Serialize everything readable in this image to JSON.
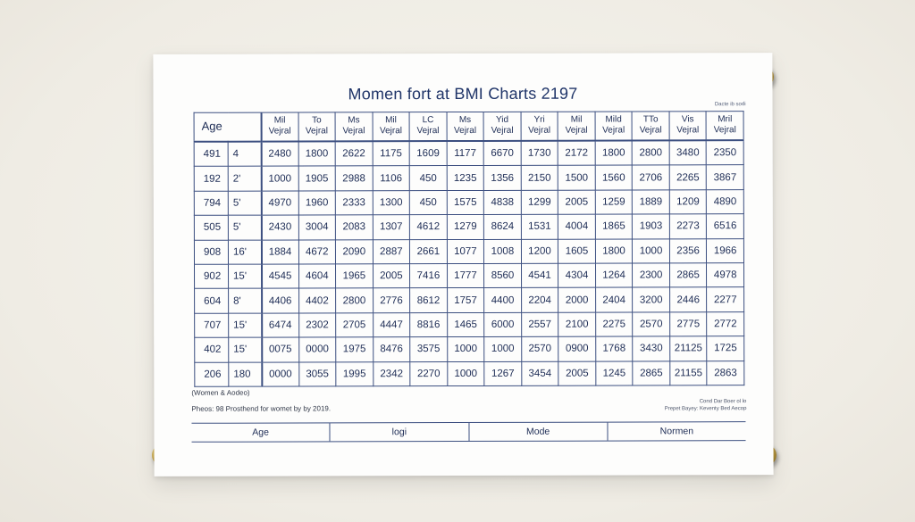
{
  "poster": {
    "title": "Momen fort at BMI Charts 2197",
    "corner_note": "Dacte ib sodi",
    "caption": "(Women & Aodeo)",
    "source": "Pheos: 98 Prosthend for womet by by 2019.",
    "credit_line1": "Cond Dar Boer ol lo",
    "credit_line2": "Prepet Bayey: Keventy Bed Aecop"
  },
  "table": {
    "age_header": "Age",
    "columns": [
      [
        "Mil",
        "Vejral"
      ],
      [
        "To",
        "Vejral"
      ],
      [
        "Ms",
        "Vejral"
      ],
      [
        "Mil",
        "Vejral"
      ],
      [
        "LC",
        "Vejral"
      ],
      [
        "Ms",
        "Vejral"
      ],
      [
        "Yid",
        "Vejral"
      ],
      [
        "Yri",
        "Vejral"
      ],
      [
        "Mil",
        "Vejral"
      ],
      [
        "Mild",
        "Vejral"
      ],
      [
        "TTo",
        "Vejral"
      ],
      [
        "Vis",
        "Vejral"
      ],
      [
        "Mril",
        "Vejral"
      ]
    ],
    "rows": [
      [
        "491",
        "4",
        "2480",
        "1800",
        "2622",
        "1175",
        "1609",
        "1177",
        "6670",
        "1730",
        "2172",
        "1800",
        "2800",
        "3480",
        "2350"
      ],
      [
        "192",
        "2'",
        "1000",
        "1905",
        "2988",
        "1106",
        "450",
        "1235",
        "1356",
        "2150",
        "1500",
        "1560",
        "2706",
        "2265",
        "3867"
      ],
      [
        "794",
        "5'",
        "4970",
        "1960",
        "2333",
        "1300",
        "450",
        "1575",
        "4838",
        "1299",
        "2005",
        "1259",
        "1889",
        "1209",
        "4890"
      ],
      [
        "505",
        "5'",
        "2430",
        "3004",
        "2083",
        "1307",
        "4612",
        "1279",
        "8624",
        "1531",
        "4004",
        "1865",
        "1903",
        "2273",
        "6516"
      ],
      [
        "908",
        "16'",
        "1884",
        "4672",
        "2090",
        "2887",
        "2661",
        "1077",
        "1008",
        "1200",
        "1605",
        "1800",
        "1000",
        "2356",
        "1966"
      ],
      [
        "902",
        "15'",
        "4545",
        "4604",
        "1965",
        "2005",
        "7416",
        "1777",
        "8560",
        "4541",
        "4304",
        "1264",
        "2300",
        "2865",
        "4978"
      ],
      [
        "604",
        "8'",
        "4406",
        "4402",
        "2800",
        "2776",
        "8612",
        "1757",
        "4400",
        "2204",
        "2000",
        "2404",
        "3200",
        "2446",
        "2277"
      ],
      [
        "707",
        "15'",
        "6474",
        "2302",
        "2705",
        "4447",
        "8816",
        "1465",
        "6000",
        "2557",
        "2100",
        "2275",
        "2570",
        "2775",
        "2772"
      ],
      [
        "402",
        "15'",
        "0075",
        "0000",
        "1975",
        "8476",
        "3575",
        "1000",
        "1000",
        "2570",
        "0900",
        "1768",
        "3430",
        "21125",
        "1725"
      ],
      [
        "206",
        "180",
        "0000",
        "3055",
        "1995",
        "2342",
        "2270",
        "1000",
        "1267",
        "3454",
        "2005",
        "1245",
        "2865",
        "21155",
        "2863"
      ]
    ]
  },
  "footer": [
    "Age",
    "logi",
    "Mode",
    "Normen"
  ]
}
